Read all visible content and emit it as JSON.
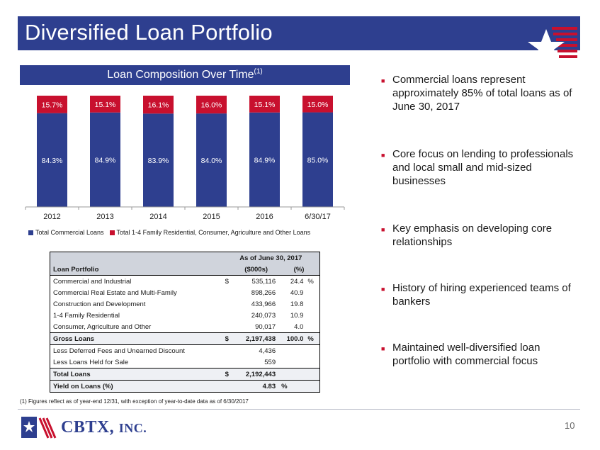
{
  "slide": {
    "title": "Diversified Loan Portfolio",
    "page_number": "10",
    "company_name_main": "CBTX,",
    "company_name_suffix": "INC.",
    "footnote": "(1) Figures reflect as of year-end 12/31, with exception of year-to-date data as of 6/30/2017"
  },
  "chart_header": {
    "title": "Loan Composition Over Time",
    "superscript": "(1)"
  },
  "chart_data": {
    "type": "bar",
    "stacked": true,
    "percent_stacked": true,
    "categories": [
      "2012",
      "2013",
      "2014",
      "2015",
      "2016",
      "6/30/17"
    ],
    "series": [
      {
        "name": "Total Commercial Loans",
        "color": "#2e3f8f",
        "values": [
          84.3,
          84.9,
          83.9,
          84.0,
          84.9,
          85.0
        ],
        "labels": [
          "84.3%",
          "84.9%",
          "83.9%",
          "84.0%",
          "84.9%",
          "85.0%"
        ]
      },
      {
        "name": "Total 1-4 Family Residential, Consumer, Agriculture and Other Loans",
        "color": "#c8102e",
        "values": [
          15.7,
          15.1,
          16.1,
          16.0,
          15.1,
          15.0
        ],
        "labels": [
          "15.7%",
          "15.1%",
          "16.1%",
          "16.0%",
          "15.1%",
          "15.0%"
        ]
      }
    ],
    "ylim": [
      0,
      100
    ],
    "legend_position": "bottom"
  },
  "table": {
    "group_header": "As of June 30, 2017",
    "col_label": "Loan Portfolio",
    "col_amount": "($000s)",
    "col_pct": "(%)",
    "rows": [
      {
        "label": "Commercial and Industrial",
        "currency": "$",
        "amount": "535,116",
        "pct": "24.4",
        "unit": "%"
      },
      {
        "label": "Commercial Real Estate and Multi-Family",
        "currency": "",
        "amount": "898,266",
        "pct": "40.9",
        "unit": ""
      },
      {
        "label": "Construction and Development",
        "currency": "",
        "amount": "433,966",
        "pct": "19.8",
        "unit": ""
      },
      {
        "label": "1-4 Family Residential",
        "currency": "",
        "amount": "240,073",
        "pct": "10.9",
        "unit": ""
      },
      {
        "label": "Consumer, Agriculture and Other",
        "currency": "",
        "amount": "90,017",
        "pct": "4.0",
        "unit": ""
      }
    ],
    "gross": {
      "label": "Gross Loans",
      "currency": "$",
      "amount": "2,197,438",
      "pct": "100.0",
      "unit": "%"
    },
    "less": [
      {
        "label": "Less Deferred Fees and Unearned Discount",
        "amount": "4,436"
      },
      {
        "label": "Less Loans Held for Sale",
        "amount": "559"
      }
    ],
    "total": {
      "label": "Total Loans",
      "currency": "$",
      "amount": "2,192,443"
    },
    "yield": {
      "label": "Yield on Loans (%)",
      "value": "4.83",
      "unit": "%"
    }
  },
  "bullets": [
    "Commercial loans represent approximately 85% of total loans as of June 30, 2017",
    "Core focus on lending to professionals and local small and mid-sized businesses",
    "Key emphasis on developing core relationships",
    "History of hiring experienced teams of bankers",
    "Maintained well-diversified loan portfolio with commercial focus"
  ],
  "colors": {
    "brand_blue": "#2e3f8f",
    "brand_red": "#c8102e"
  },
  "icons": {
    "header_logo": "star-flag-icon",
    "footer_logo": "flag-logo-icon",
    "bullet": "square-bullet-icon"
  }
}
